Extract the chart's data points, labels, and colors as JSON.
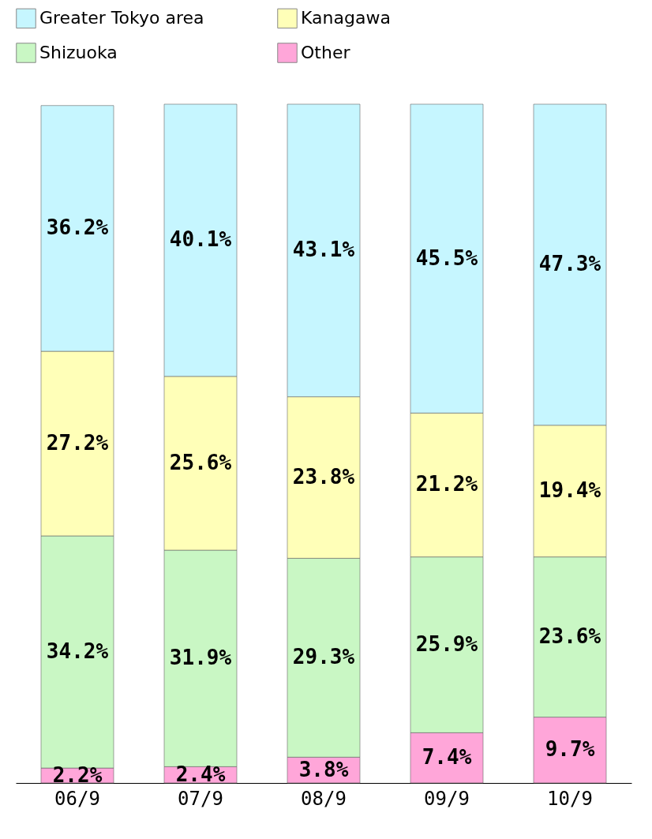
{
  "chart_data": {
    "type": "bar",
    "stacked": true,
    "categories": [
      "06/9",
      "07/9",
      "08/9",
      "09/9",
      "10/9"
    ],
    "legend": "top",
    "tick_labels": "x",
    "series": [
      {
        "name": "Other",
        "color": "#ffa6d9",
        "values": [
          2.2,
          2.4,
          3.8,
          7.4,
          9.7
        ],
        "value_labels": [
          "2.2%",
          "2.4%",
          "3.8%",
          "7.4%",
          "9.7%"
        ]
      },
      {
        "name": "Shizuoka",
        "color": "#c9f7c4",
        "values": [
          34.2,
          31.9,
          29.3,
          25.9,
          23.6
        ],
        "value_labels": [
          "34.2%",
          "31.9%",
          "29.3%",
          "25.9%",
          "23.6%"
        ]
      },
      {
        "name": "Kanagawa",
        "color": "#ffffb8",
        "values": [
          27.2,
          25.6,
          23.8,
          21.2,
          19.4
        ],
        "value_labels": [
          "27.2%",
          "25.6%",
          "23.8%",
          "21.2%",
          "19.4%"
        ]
      },
      {
        "name": "Greater Tokyo area",
        "color": "#c6f6ff",
        "values": [
          36.2,
          40.1,
          43.1,
          45.5,
          47.3
        ],
        "value_labels": [
          "36.2%",
          "40.1%",
          "43.1%",
          "45.5%",
          "47.3%"
        ]
      }
    ]
  }
}
